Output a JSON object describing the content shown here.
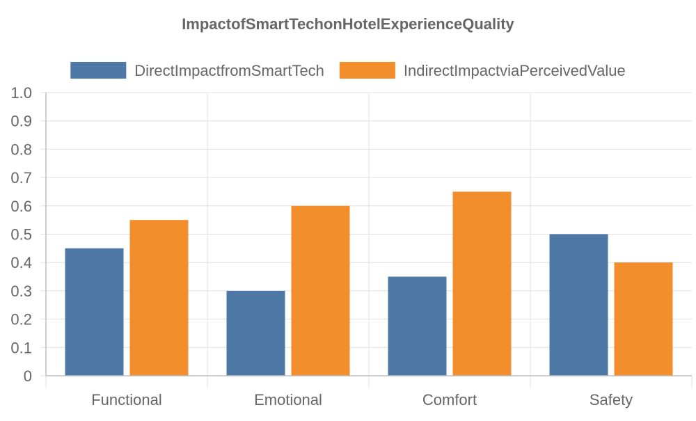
{
  "chart_data": {
    "type": "bar",
    "title": "ImpactofSmartTechonHotelExperienceQuality",
    "xlabel": "",
    "ylabel": "",
    "categories": [
      "Functional",
      "Emotional",
      "Comfort",
      "Safety"
    ],
    "series": [
      {
        "name": "DirectImpactfromSmartTech",
        "color": "#4e79a7",
        "values": [
          0.45,
          0.3,
          0.35,
          0.5
        ]
      },
      {
        "name": "IndirectImpactviaPerceivedValue",
        "color": "#f28e2b",
        "values": [
          0.55,
          0.6,
          0.65,
          0.4
        ]
      }
    ],
    "ylim": [
      0,
      1.0
    ],
    "yticks": [
      "0",
      "0.1",
      "0.2",
      "0.3",
      "0.4",
      "0.5",
      "0.6",
      "0.7",
      "0.8",
      "0.9",
      "1.0"
    ],
    "grid": true,
    "legend_position": "top"
  }
}
